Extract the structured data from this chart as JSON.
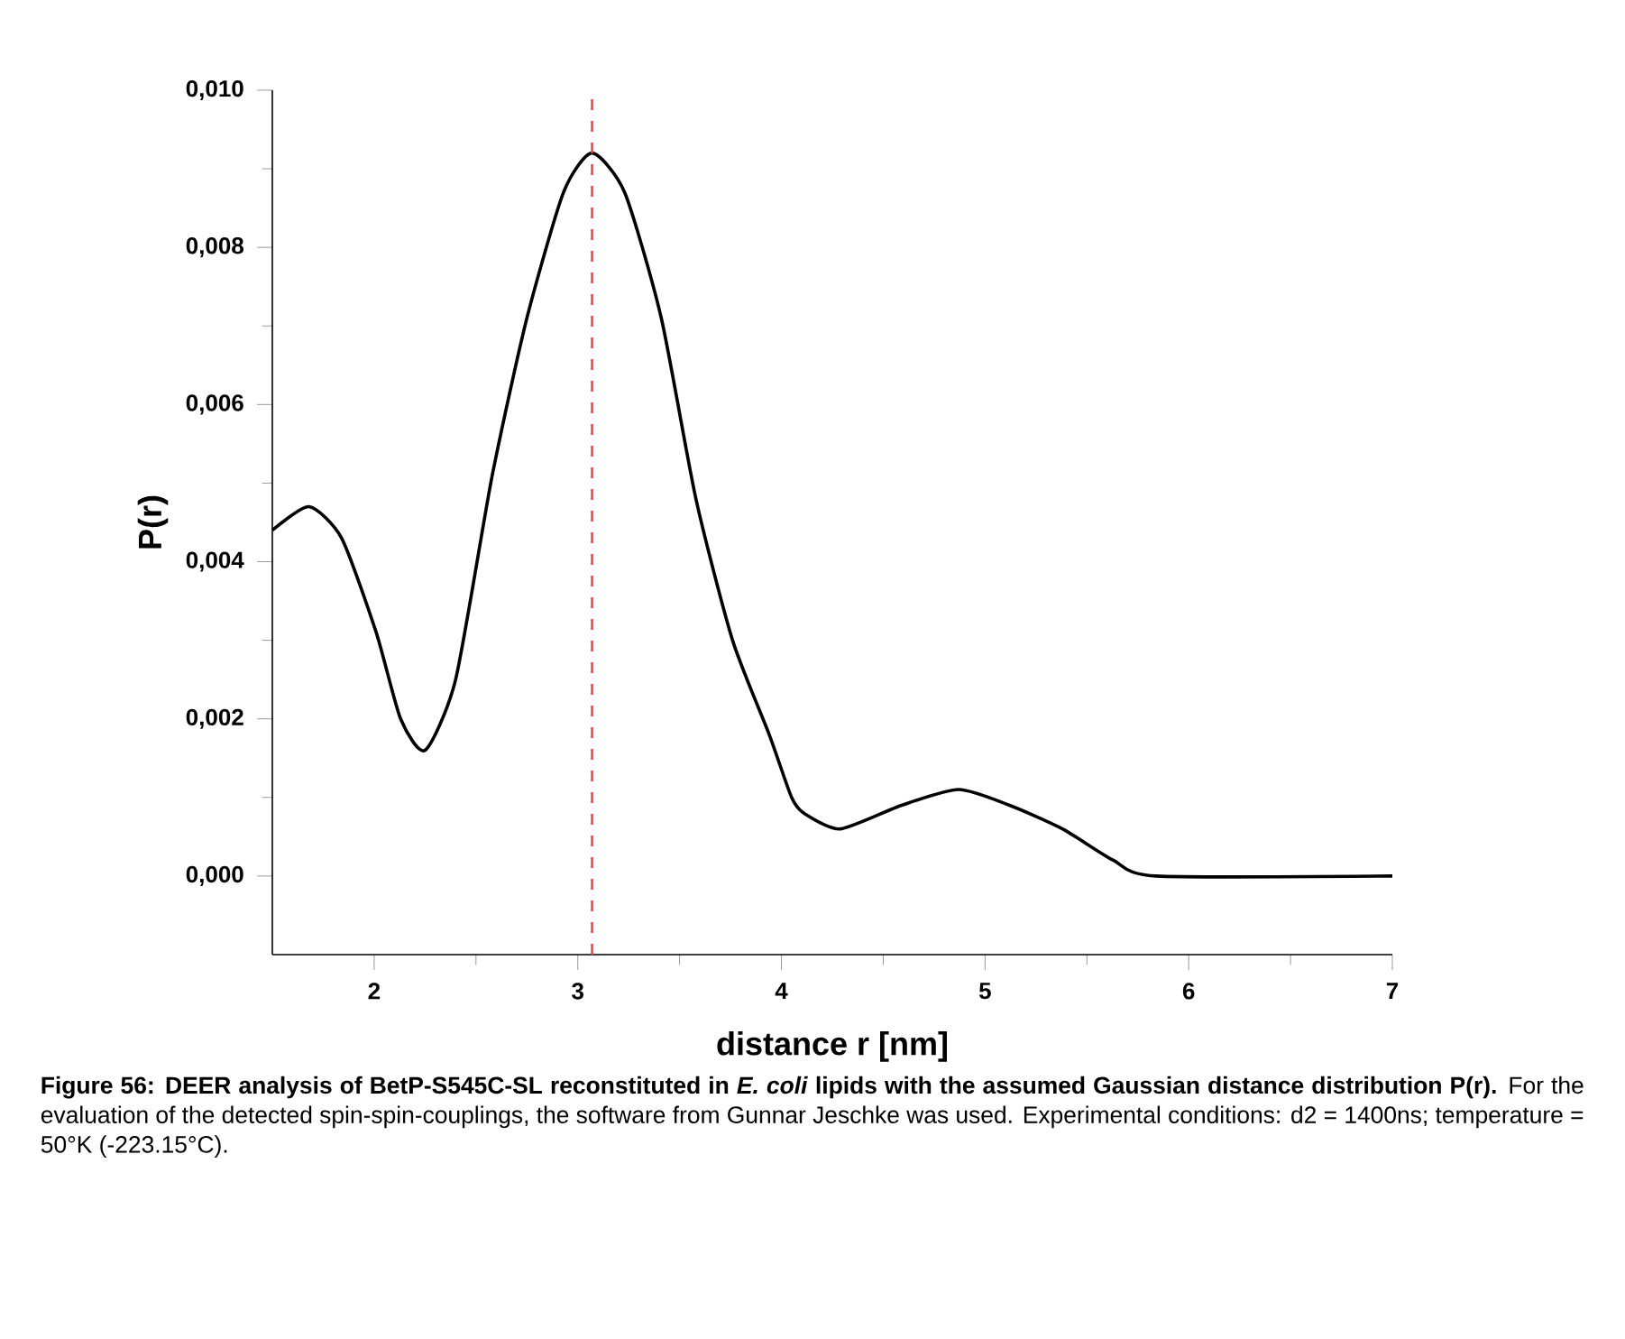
{
  "chart_data": {
    "type": "line",
    "xlabel": "distance r [nm]",
    "ylabel": "P(r)",
    "x": [
      1.5,
      1.68,
      1.84,
      2.01,
      2.13,
      2.25,
      2.4,
      2.58,
      2.75,
      2.93,
      3.07,
      3.23,
      3.41,
      3.58,
      3.76,
      3.94,
      4.05,
      4.11,
      4.29,
      4.59,
      4.87,
      5.12,
      5.38,
      5.63,
      5.84,
      7.0
    ],
    "series": [
      {
        "color": "#000000",
        "values": [
          0.0044,
          0.0047,
          0.0043,
          0.0031,
          0.002,
          0.0016,
          0.0025,
          0.0051,
          0.0071,
          0.0087,
          0.0092,
          0.0087,
          0.0071,
          0.0048,
          0.003,
          0.0018,
          0.001,
          0.0008,
          0.0006,
          0.0009,
          0.0011,
          0.0009,
          0.0006,
          0.0002,
          0.0,
          0.0
        ]
      }
    ],
    "xlim": [
      1.5,
      7
    ],
    "ylim": [
      -0.001,
      0.01
    ],
    "xticks": [
      2,
      3,
      4,
      5,
      6,
      7
    ],
    "yticks": [
      {
        "value": 0,
        "label": "0,000"
      },
      {
        "value": 0.002,
        "label": "0,002"
      },
      {
        "value": 0.004,
        "label": "0,004"
      },
      {
        "value": 0.006,
        "label": "0,006"
      },
      {
        "value": 0.008,
        "label": "0,008"
      },
      {
        "value": 0.01,
        "label": "0,010"
      }
    ],
    "ref_lines": [
      {
        "axis": "x",
        "value": 3.07,
        "color": "#ff3333",
        "line_style": "dashed"
      }
    ],
    "grid": false,
    "marker": "none",
    "line_style": "solid",
    "annotations": [
      "Figure 56: DEER analysis of BetP-S545C-SL reconstituted in *E. coli* lipids with the assumed Gaussian distance distribution P(r).",
      "For the evaluation of the detected spin-spin-couplings, the software from Gunnar Jeschke was used. Experimental conditions: d2 = 1400ns; temperature = 50°K (-223.15°C)."
    ]
  }
}
